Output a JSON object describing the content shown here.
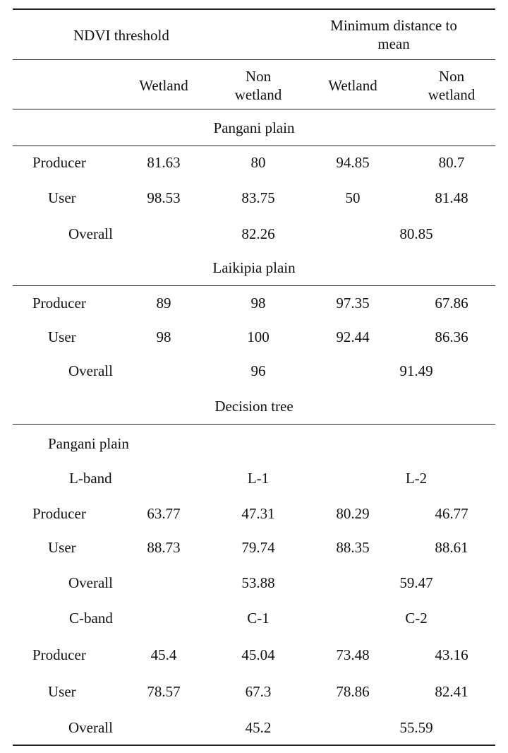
{
  "header": {
    "group_ndvi": "NDVI threshold",
    "group_mdm_line1": "Minimum distance to",
    "group_mdm_line2": "mean",
    "col_wetland_1": "Wetland",
    "col_nonwetland_1_l1": "Non",
    "col_nonwetland_1_l2": "wetland",
    "col_wetland_2": "Wetland",
    "col_nonwetland_2_l1": "Non",
    "col_nonwetland_2_l2": "wetland"
  },
  "sections": {
    "pangani": {
      "title": "Pangani plain",
      "producer": {
        "label": "Producer",
        "v": [
          "81.63",
          "80",
          "94.85",
          "80.7"
        ]
      },
      "user": {
        "label": "User",
        "v": [
          "98.53",
          "83.75",
          "50",
          "81.48"
        ]
      },
      "overall": {
        "label": "Overall",
        "v": [
          "82.26",
          "80.85"
        ]
      }
    },
    "laikipia": {
      "title": "Laikipia plain",
      "producer": {
        "label": "Producer",
        "v": [
          "89",
          "98",
          "97.35",
          "67.86"
        ]
      },
      "user": {
        "label": "User",
        "v": [
          "98",
          "100",
          "92.44",
          "86.36"
        ]
      },
      "overall": {
        "label": "Overall",
        "v": [
          "96",
          "91.49"
        ]
      }
    },
    "decision_tree": {
      "title": "Decision tree",
      "subtitle": "Pangani plain",
      "lband": {
        "label": "L-band",
        "col1": "L-1",
        "col2": "L-2",
        "producer": {
          "label": "Producer",
          "v": [
            "63.77",
            "47.31",
            "80.29",
            "46.77"
          ]
        },
        "user": {
          "label": "User",
          "v": [
            "88.73",
            "79.74",
            "88.35",
            "88.61"
          ]
        },
        "overall": {
          "label": "Overall",
          "v": [
            "53.88",
            "59.47"
          ]
        }
      },
      "cband": {
        "label": "C-band",
        "col1": "C-1",
        "col2": "C-2",
        "producer": {
          "label": "Producer",
          "v": [
            "45.4",
            "45.04",
            "73.48",
            "43.16"
          ]
        },
        "user": {
          "label": "User",
          "v": [
            "78.57",
            "67.3",
            "78.86",
            "82.41"
          ]
        },
        "overall": {
          "label": "Overall",
          "v": [
            "45.2",
            "55.59"
          ]
        }
      }
    }
  }
}
